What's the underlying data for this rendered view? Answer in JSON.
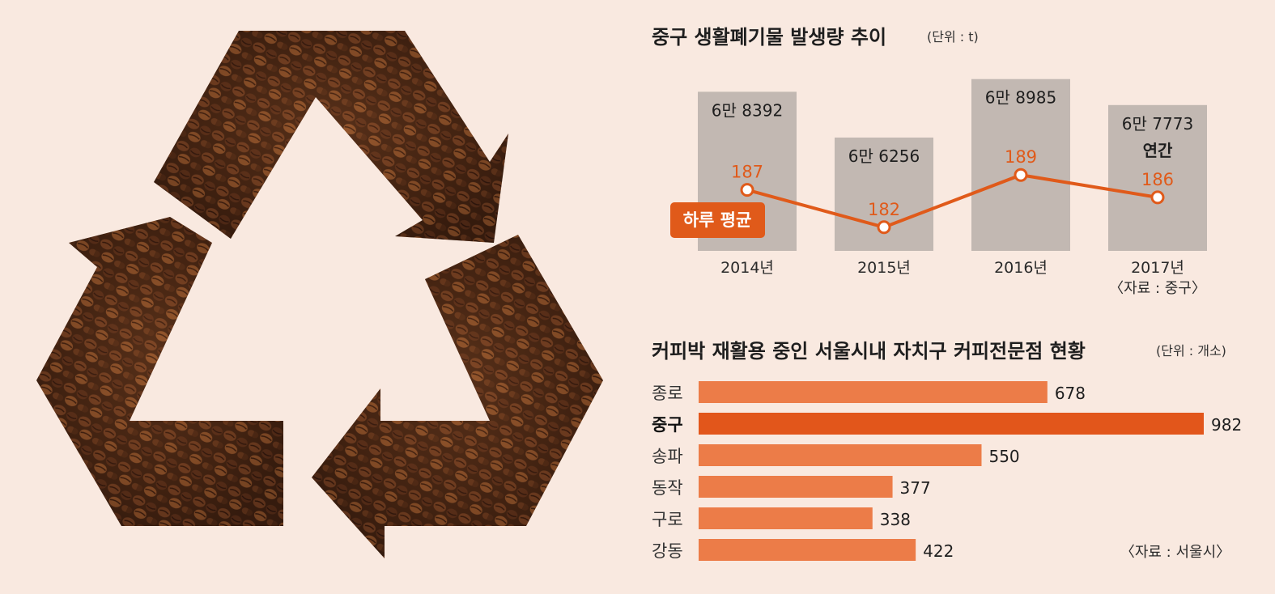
{
  "top_chart": {
    "title": "중구 생활폐기물 발생량 추이",
    "unit": "(단위 : t)",
    "legend_label": "하루 평균",
    "source": "〈자료 : 중구〉"
  },
  "bottom_chart": {
    "title": "커피박 재활용 중인 서울시내 자치구 커피전문점 현황",
    "unit": "(단위 : 개소)",
    "source": "〈자료 : 서울시〉"
  },
  "colors": {
    "background": "#f9e9e0",
    "column_gray": "#c2b8b2",
    "line_orange": "#e05a1a",
    "bar_orange": "#ec7c48",
    "bar_highlight": "#e2561b"
  },
  "chart_data": [
    {
      "type": "bar",
      "subtype": "column-with-line",
      "categories": [
        "2014년",
        "2015년",
        "2016년",
        "2017년"
      ],
      "series": [
        {
          "name": "",
          "values": [
            68392,
            66256,
            68985,
            67773
          ],
          "labels": [
            "6만 8392",
            "6만 6256",
            "6만 8985",
            "6만 7773"
          ],
          "label_suffix": [
            "",
            "",
            "",
            "연간"
          ]
        },
        {
          "name": "하루 평균",
          "values": [
            187,
            182,
            189,
            186
          ]
        }
      ]
    },
    {
      "type": "bar",
      "orientation": "horizontal",
      "categories": [
        "종로",
        "중구",
        "송파",
        "동작",
        "구로",
        "강동"
      ],
      "values": [
        678,
        982,
        550,
        377,
        338,
        422
      ],
      "highlight": "중구",
      "xlim": [
        0,
        982
      ]
    }
  ]
}
